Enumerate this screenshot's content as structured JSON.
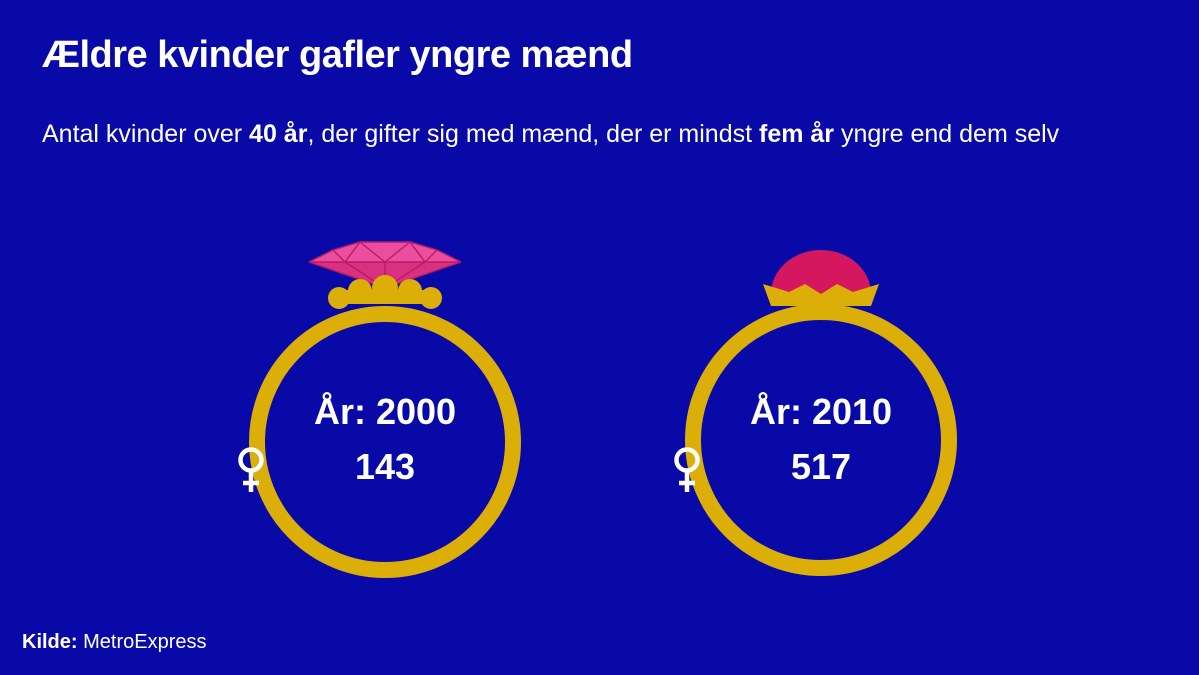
{
  "title": "Ældre kvinder gafler yngre mænd",
  "subtitle": {
    "part1": "Antal kvinder over ",
    "bold1": "40 år",
    "part2": ", der gifter sig med mænd, der er mindst ",
    "bold2": "fem år",
    "part3": " yngre end dem selv"
  },
  "rings": [
    {
      "year_label": "År: 2000",
      "count": "143",
      "stone": "diamond-icon"
    },
    {
      "year_label": "År: 2010",
      "count": "517",
      "stone": "round-gem-icon"
    }
  ],
  "source": {
    "label": "Kilde:",
    "value": " MetroExpress"
  },
  "colors": {
    "background": "#0909a8",
    "ring_gold": "#dcae08",
    "gem_pink": "#e23c8e",
    "gem_magenta": "#d4175f",
    "text": "#ffffff"
  }
}
